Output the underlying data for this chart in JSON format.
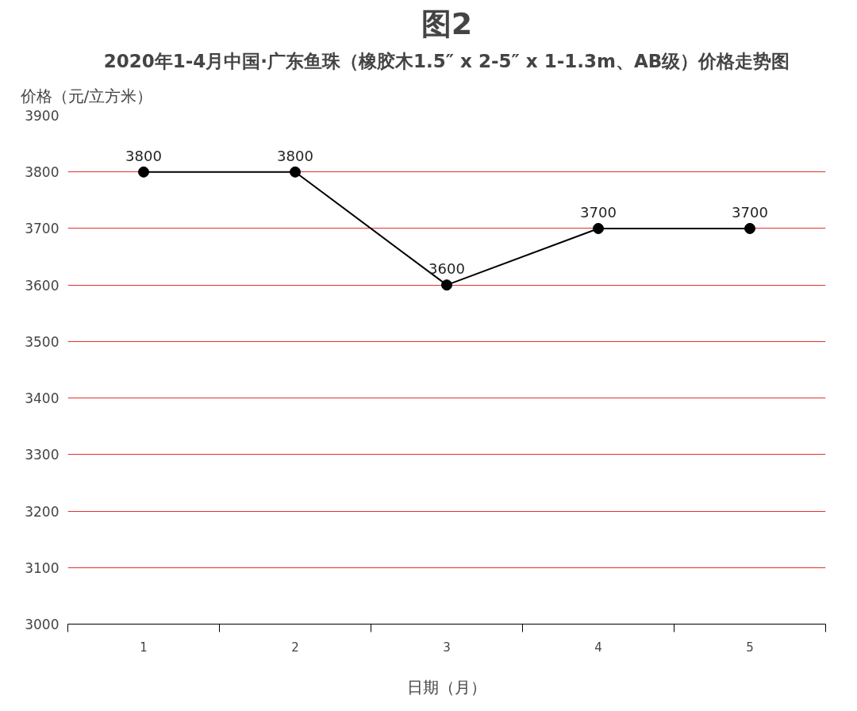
{
  "chart_data": {
    "type": "line",
    "title": "图2",
    "subtitle": "2020年1-4月中国·广东鱼珠（橡胶木1.5″ x 2-5″ x 1-1.3m、AB级）价格走势图",
    "ylabel": "价格（元/立方米）",
    "xlabel": "日期（月）",
    "categories": [
      "1",
      "2",
      "3",
      "4",
      "5"
    ],
    "series": [
      {
        "color": "#000000",
        "values": [
          3800,
          3800,
          3600,
          3700,
          3700
        ]
      }
    ],
    "ylim": [
      3000,
      3900
    ],
    "yticks": [
      3000,
      3100,
      3200,
      3300,
      3400,
      3500,
      3600,
      3700,
      3800,
      3900
    ],
    "grid": "y",
    "marker": "circle",
    "line_style": "solid",
    "data_labels": true
  }
}
